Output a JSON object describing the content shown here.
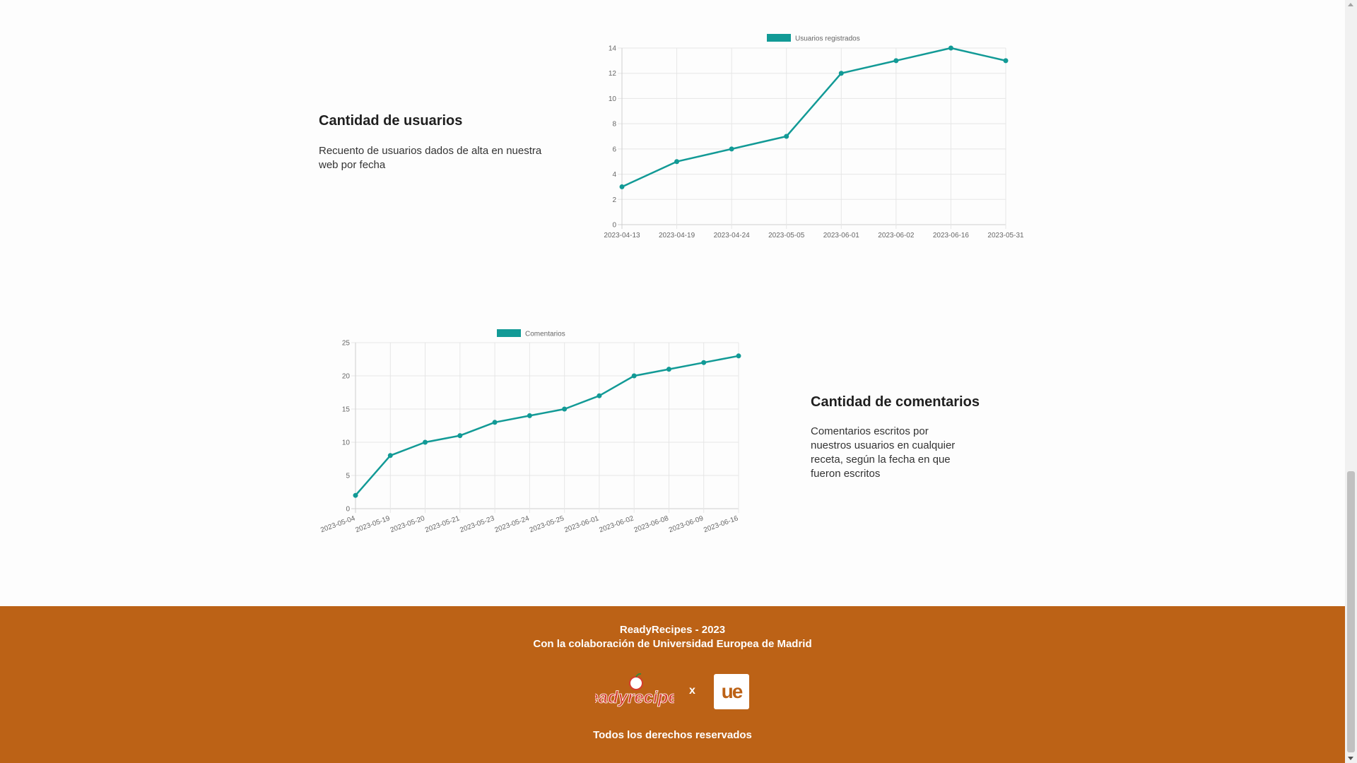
{
  "users_section": {
    "title": "Cantidad de usuarios",
    "description": "Recuento de usuarios dados de alta en nuestra web por fecha"
  },
  "comments_section": {
    "title": "Cantidad de comentarios",
    "description": "Comentarios escritos por nuestros usuarios en cualquier receta, según la fecha en que fueron escritos"
  },
  "footer": {
    "line1": "ReadyRecipes - 2023",
    "line2": "Con la colaboración de Universidad Europea de Madrid",
    "separator": "x",
    "rights": "Todos los derechos reservados",
    "logo_left_text": "readyrecipes",
    "logo_right_text": "ue",
    "background_color": "#bc6216"
  },
  "chart_data": [
    {
      "type": "line",
      "title": "",
      "categories": [
        "2023-04-13",
        "2023-04-19",
        "2023-04-24",
        "2023-05-05",
        "2023-06-01",
        "2023-06-02",
        "2023-06-16",
        "2023-05-31"
      ],
      "series": [
        {
          "name": "Usuarios registrados",
          "values": [
            3,
            5,
            6,
            7,
            12,
            13,
            14,
            13
          ],
          "color": "#129a96"
        }
      ],
      "ylim": [
        0,
        14
      ],
      "yticks": [
        0,
        2,
        4,
        6,
        8,
        10,
        12,
        14
      ],
      "grid": true,
      "legend": "top"
    },
    {
      "type": "line",
      "title": "",
      "categories": [
        "2023-05-04",
        "2023-05-19",
        "2023-05-20",
        "2023-05-21",
        "2023-05-23",
        "2023-05-24",
        "2023-05-25",
        "2023-06-01",
        "2023-06-02",
        "2023-06-08",
        "2023-06-09",
        "2023-06-16"
      ],
      "series": [
        {
          "name": "Comentarios",
          "values": [
            2,
            8,
            10,
            11,
            13,
            14,
            15,
            17,
            20,
            21,
            22,
            23
          ],
          "color": "#129a96"
        }
      ],
      "ylim": [
        0,
        25
      ],
      "yticks": [
        0,
        5,
        10,
        15,
        20,
        25
      ],
      "grid": true,
      "legend": "top"
    }
  ]
}
